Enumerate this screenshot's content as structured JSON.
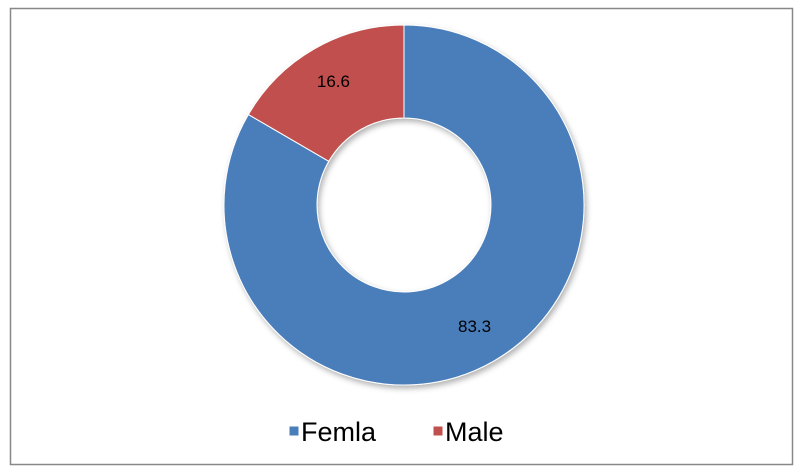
{
  "chart_data": {
    "type": "donut",
    "categories": [
      "Femla",
      "Male"
    ],
    "values": [
      83.3,
      16.6
    ],
    "colors": [
      "#4a7ebb",
      "#c0504d"
    ],
    "legend": "bottom"
  }
}
